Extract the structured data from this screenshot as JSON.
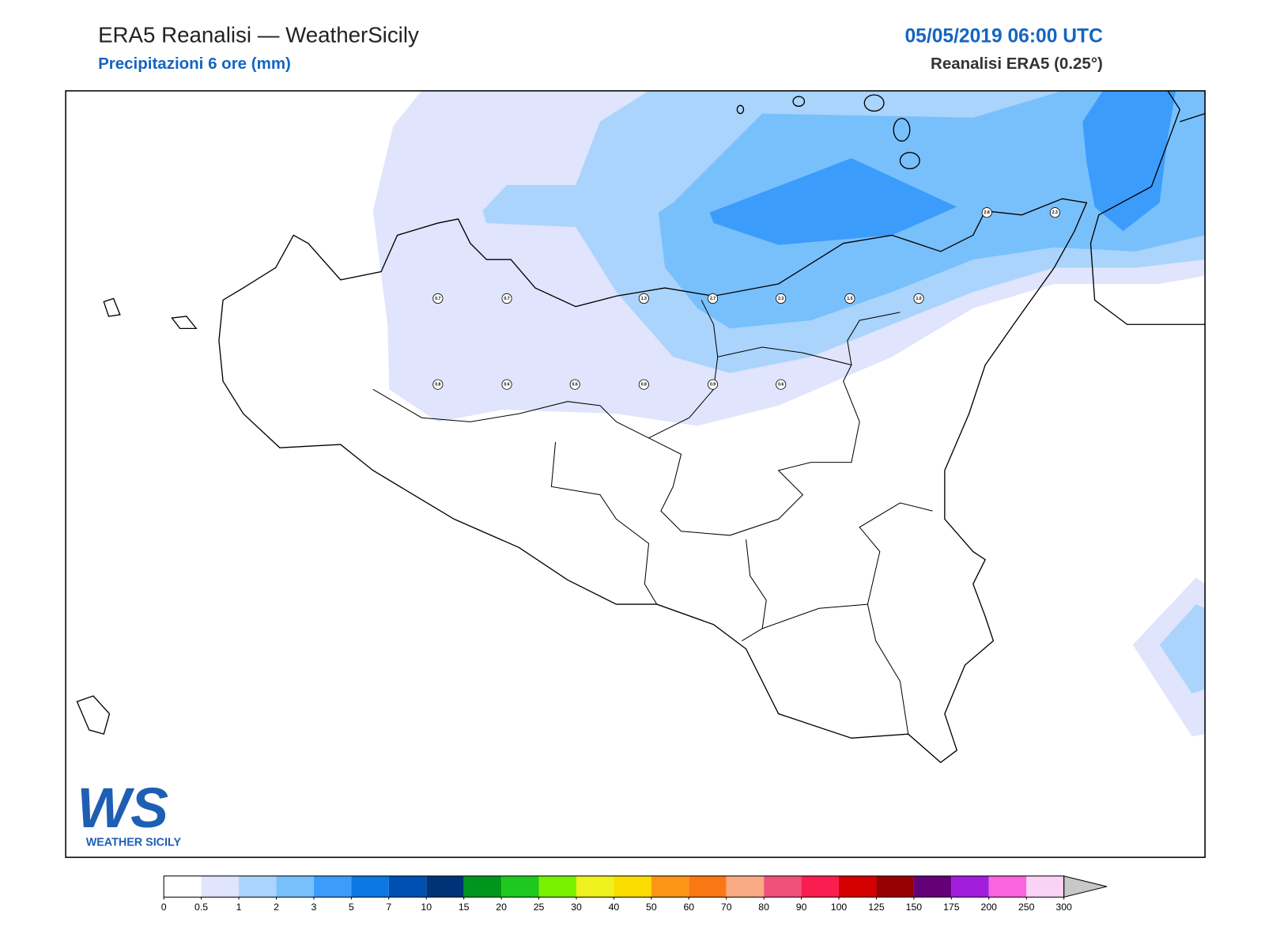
{
  "header": {
    "title": "ERA5 Reanalisi — WeatherSicily",
    "subtitle": "Precipitazioni 6 ore (mm)",
    "datetime": "05/05/2019 06:00 UTC",
    "model": "Reanalisi ERA5 (0.25°)"
  },
  "stations": [
    "0.7",
    "0.7",
    "1.3",
    "2.7",
    "2.3",
    "1.5",
    "1.0",
    "2.8",
    "2.3",
    "0.8",
    "0.6",
    "0.6",
    "0.8",
    "0.9",
    "0.6"
  ],
  "colorbar": {
    "ticks": [
      0,
      0.5,
      1,
      2,
      3,
      5,
      7,
      10,
      15,
      20,
      25,
      30,
      40,
      50,
      60,
      70,
      80,
      90,
      100,
      125,
      150,
      175,
      200,
      250,
      300
    ],
    "colors": [
      "#ffffff",
      "#e0e4fc",
      "#aad4fc",
      "#78c0fc",
      "#3c9cfc",
      "#0a78e0",
      "#0050b4",
      "#003278",
      "#00961e",
      "#1ec81e",
      "#78f000",
      "#f0f01e",
      "#fadc00",
      "#fa9614",
      "#fa7814",
      "#faaa82",
      "#f0507a",
      "#fa1e50",
      "#d20000",
      "#960000",
      "#640078",
      "#a01edc",
      "#fa64dc",
      "#fad2f5"
    ],
    "extend_color": "#c8c8c8"
  },
  "logo": {
    "mark": "WS",
    "name": "WEATHER SICILY"
  }
}
